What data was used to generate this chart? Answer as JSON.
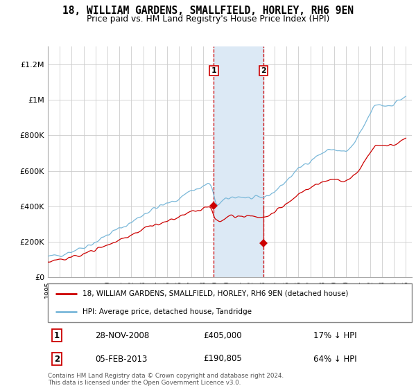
{
  "title": "18, WILLIAM GARDENS, SMALLFIELD, HORLEY, RH6 9EN",
  "subtitle": "Price paid vs. HM Land Registry's House Price Index (HPI)",
  "legend_line1": "18, WILLIAM GARDENS, SMALLFIELD, HORLEY, RH6 9EN (detached house)",
  "legend_line2": "HPI: Average price, detached house, Tandridge",
  "sale1_date": "28-NOV-2008",
  "sale1_price": "£405,000",
  "sale1_hpi": "17% ↓ HPI",
  "sale1_year": 2008.91,
  "sale1_value": 405000,
  "sale2_date": "05-FEB-2013",
  "sale2_price": "£190,805",
  "sale2_hpi": "64% ↓ HPI",
  "sale2_year": 2013.09,
  "sale2_value": 190805,
  "hpi_color": "#7ab8d9",
  "price_color": "#cc0000",
  "shade_color": "#dce9f5",
  "vline_color": "#cc0000",
  "grid_color": "#cccccc",
  "footer": "Contains HM Land Registry data © Crown copyright and database right 2024.\nThis data is licensed under the Open Government Licence v3.0.",
  "ylim": [
    0,
    1300000
  ],
  "yticks": [
    0,
    200000,
    400000,
    600000,
    800000,
    1000000,
    1200000
  ],
  "ytick_labels": [
    "£0",
    "£200K",
    "£400K",
    "£600K",
    "£800K",
    "£1M",
    "£1.2M"
  ]
}
